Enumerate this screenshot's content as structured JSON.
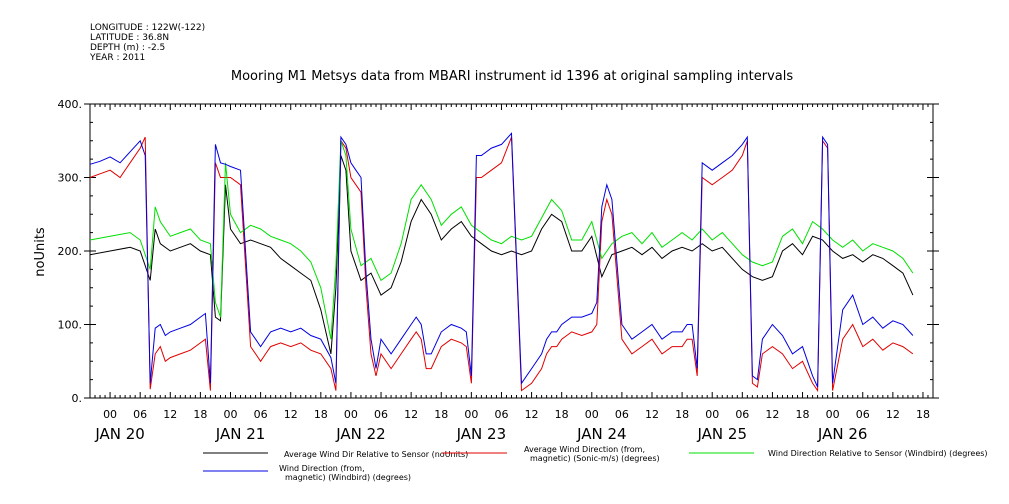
{
  "meta": {
    "longitude": "LONGITUDE : 122W(-122)",
    "latitude": "LATITUDE : 36.8N",
    "depth": "DEPTH (m) : -2.5",
    "year": "YEAR : 2011"
  },
  "chart_data": {
    "type": "line",
    "title": "Mooring M1 Metsys data from MBARI instrument id 1396 at original sampling intervals",
    "ylabel": "noUnits",
    "ylim": [
      0,
      400
    ],
    "yticks": [
      {
        "value": 0,
        "label": "0."
      },
      {
        "value": 100,
        "label": "100."
      },
      {
        "value": 200,
        "label": "200."
      },
      {
        "value": 300,
        "label": "300."
      },
      {
        "value": 400,
        "label": "400."
      }
    ],
    "x_hour_start": -4,
    "x_hour_end": 164,
    "hour_tick_labels": [
      "00",
      "06",
      "12",
      "18"
    ],
    "day_labels": [
      "JAN 20",
      "JAN 21",
      "JAN 22",
      "JAN 23",
      "JAN 24",
      "JAN 25",
      "JAN 26"
    ],
    "legend": [
      {
        "label_lines": [
          "Average Wind Dir Relative to Sensor (noUnits)"
        ],
        "color": "#000000"
      },
      {
        "label_lines": [
          "Average Wind Direction (from,",
          "magnetic) (Sonic-m/s) (degrees)"
        ],
        "color": "#e00000"
      },
      {
        "label_lines": [
          "Wind Direction Relative to Sensor (Windbird) (degrees)"
        ],
        "color": "#00e000"
      },
      {
        "label_lines": [
          "Wind Direction (from,",
          "magnetic) (Windbird) (degrees)"
        ],
        "color": "#0000e0"
      }
    ],
    "series": [
      {
        "name": "Average Wind Dir Relative to Sensor (noUnits)",
        "color": "#000000",
        "hours": [
          -4,
          0,
          4,
          6,
          8,
          9,
          10,
          12,
          14,
          16,
          18,
          20,
          21,
          22,
          23,
          24,
          26,
          28,
          30,
          32,
          34,
          36,
          38,
          40,
          42,
          44,
          45,
          46,
          47,
          48,
          50,
          52,
          54,
          56,
          58,
          60,
          62,
          64,
          66,
          68,
          70,
          72,
          74,
          76,
          78,
          80,
          82,
          84,
          86,
          88,
          90,
          92,
          94,
          96,
          98,
          100,
          102,
          104,
          106,
          108,
          110,
          112,
          114,
          116,
          118,
          120,
          122,
          124,
          126,
          128,
          130,
          132,
          134,
          136,
          138,
          140,
          142,
          144,
          146,
          148,
          150,
          152,
          154,
          156,
          158,
          160
        ],
        "values": [
          195,
          200,
          205,
          200,
          160,
          230,
          210,
          200,
          205,
          210,
          200,
          195,
          110,
          105,
          290,
          230,
          210,
          215,
          210,
          205,
          190,
          180,
          170,
          160,
          120,
          60,
          150,
          330,
          310,
          200,
          160,
          170,
          140,
          150,
          185,
          240,
          270,
          250,
          215,
          230,
          240,
          220,
          210,
          200,
          195,
          200,
          195,
          200,
          230,
          250,
          240,
          200,
          200,
          220,
          165,
          195,
          200,
          205,
          195,
          205,
          190,
          200,
          205,
          200,
          210,
          200,
          205,
          190,
          175,
          165,
          160,
          165,
          200,
          210,
          195,
          220,
          215,
          200,
          190,
          195,
          185,
          195,
          190,
          180,
          170,
          140
        ]
      },
      {
        "name": "Average Wind Direction (from, magnetic) (Sonic-m/s) (degrees)",
        "color": "#e00000",
        "hours": [
          -4,
          -2,
          0,
          2,
          4,
          6,
          7,
          8,
          9,
          10,
          11,
          12,
          14,
          16,
          18,
          19,
          20,
          21,
          22,
          23,
          24,
          26,
          28,
          29,
          30,
          31,
          32,
          34,
          36,
          38,
          40,
          42,
          44,
          45,
          46,
          47,
          48,
          49,
          50,
          51,
          52,
          53,
          54,
          56,
          58,
          60,
          61,
          62,
          63,
          64,
          66,
          68,
          70,
          71,
          72,
          73,
          74,
          76,
          78,
          80,
          82,
          84,
          86,
          87,
          88,
          89,
          90,
          92,
          94,
          96,
          97,
          98,
          99,
          100,
          102,
          104,
          106,
          108,
          110,
          112,
          114,
          115,
          116,
          117,
          118,
          120,
          122,
          124,
          126,
          127,
          128,
          129,
          130,
          132,
          134,
          136,
          138,
          140,
          141,
          142,
          143,
          144,
          146,
          148,
          150,
          152,
          154,
          156,
          158,
          160
        ],
        "values": [
          300,
          305,
          310,
          300,
          320,
          340,
          355,
          12,
          60,
          70,
          50,
          55,
          60,
          65,
          75,
          80,
          10,
          320,
          300,
          300,
          300,
          290,
          70,
          60,
          50,
          60,
          70,
          75,
          70,
          75,
          65,
          60,
          40,
          10,
          350,
          340,
          300,
          290,
          280,
          150,
          60,
          30,
          60,
          40,
          60,
          80,
          90,
          80,
          40,
          40,
          70,
          80,
          75,
          70,
          20,
          300,
          300,
          310,
          320,
          355,
          10,
          20,
          40,
          60,
          70,
          70,
          80,
          90,
          85,
          90,
          100,
          240,
          270,
          250,
          80,
          60,
          70,
          80,
          60,
          70,
          70,
          80,
          80,
          30,
          300,
          290,
          300,
          310,
          330,
          350,
          20,
          15,
          60,
          70,
          60,
          40,
          50,
          20,
          10,
          350,
          340,
          10,
          80,
          100,
          70,
          80,
          65,
          75,
          70,
          60
        ]
      },
      {
        "name": "Wind Direction Relative to Sensor (Windbird) (degrees)",
        "color": "#00e000",
        "hours": [
          -4,
          0,
          4,
          6,
          8,
          9,
          10,
          12,
          14,
          16,
          18,
          20,
          21,
          22,
          23,
          24,
          26,
          28,
          30,
          32,
          34,
          36,
          38,
          40,
          42,
          44,
          45,
          46,
          47,
          48,
          50,
          52,
          54,
          56,
          58,
          60,
          62,
          64,
          66,
          68,
          70,
          72,
          74,
          76,
          78,
          80,
          82,
          84,
          86,
          88,
          90,
          92,
          94,
          96,
          98,
          100,
          102,
          104,
          106,
          108,
          110,
          112,
          114,
          116,
          118,
          120,
          122,
          124,
          126,
          128,
          130,
          132,
          134,
          136,
          138,
          140,
          142,
          144,
          146,
          148,
          150,
          152,
          154,
          156,
          158,
          160
        ],
        "values": [
          215,
          220,
          225,
          215,
          175,
          260,
          240,
          220,
          225,
          230,
          215,
          210,
          130,
          110,
          320,
          250,
          225,
          235,
          230,
          220,
          215,
          210,
          200,
          185,
          150,
          80,
          180,
          350,
          330,
          230,
          180,
          190,
          160,
          170,
          210,
          270,
          290,
          270,
          235,
          250,
          260,
          235,
          225,
          215,
          210,
          220,
          215,
          220,
          245,
          270,
          255,
          215,
          215,
          240,
          190,
          210,
          220,
          225,
          210,
          225,
          205,
          215,
          225,
          215,
          230,
          215,
          225,
          210,
          195,
          185,
          180,
          185,
          220,
          230,
          210,
          240,
          230,
          215,
          205,
          215,
          200,
          210,
          205,
          200,
          190,
          170
        ]
      },
      {
        "name": "Wind Direction (from, magnetic) (Windbird) (degrees)",
        "color": "#0000e0",
        "hours": [
          -4,
          -2,
          0,
          2,
          4,
          6,
          7,
          8,
          9,
          10,
          11,
          12,
          14,
          16,
          18,
          19,
          20,
          21,
          22,
          23,
          24,
          26,
          28,
          29,
          30,
          31,
          32,
          34,
          36,
          38,
          40,
          42,
          44,
          45,
          46,
          47,
          48,
          49,
          50,
          51,
          52,
          53,
          54,
          56,
          58,
          60,
          61,
          62,
          63,
          64,
          66,
          68,
          70,
          71,
          72,
          73,
          74,
          76,
          78,
          80,
          82,
          84,
          86,
          87,
          88,
          89,
          90,
          92,
          94,
          96,
          97,
          98,
          99,
          100,
          102,
          104,
          106,
          108,
          110,
          112,
          114,
          115,
          116,
          117,
          118,
          120,
          122,
          124,
          126,
          127,
          128,
          129,
          130,
          132,
          134,
          136,
          138,
          140,
          141,
          142,
          143,
          144,
          146,
          148,
          150,
          152,
          154,
          156,
          158,
          160
        ],
        "values": [
          318,
          322,
          328,
          320,
          335,
          350,
          330,
          20,
          95,
          100,
          85,
          90,
          95,
          100,
          110,
          115,
          20,
          345,
          320,
          318,
          315,
          310,
          90,
          80,
          70,
          80,
          90,
          95,
          90,
          95,
          85,
          80,
          55,
          20,
          355,
          345,
          320,
          310,
          300,
          170,
          80,
          40,
          80,
          60,
          80,
          100,
          110,
          100,
          60,
          60,
          90,
          100,
          95,
          90,
          30,
          330,
          330,
          340,
          345,
          360,
          20,
          40,
          60,
          80,
          90,
          90,
          100,
          110,
          110,
          115,
          130,
          260,
          290,
          270,
          100,
          80,
          90,
          100,
          80,
          90,
          90,
          100,
          100,
          40,
          320,
          310,
          320,
          330,
          345,
          355,
          30,
          25,
          80,
          100,
          85,
          60,
          70,
          30,
          15,
          355,
          345,
          20,
          120,
          140,
          100,
          110,
          95,
          105,
          100,
          85
        ]
      }
    ]
  }
}
